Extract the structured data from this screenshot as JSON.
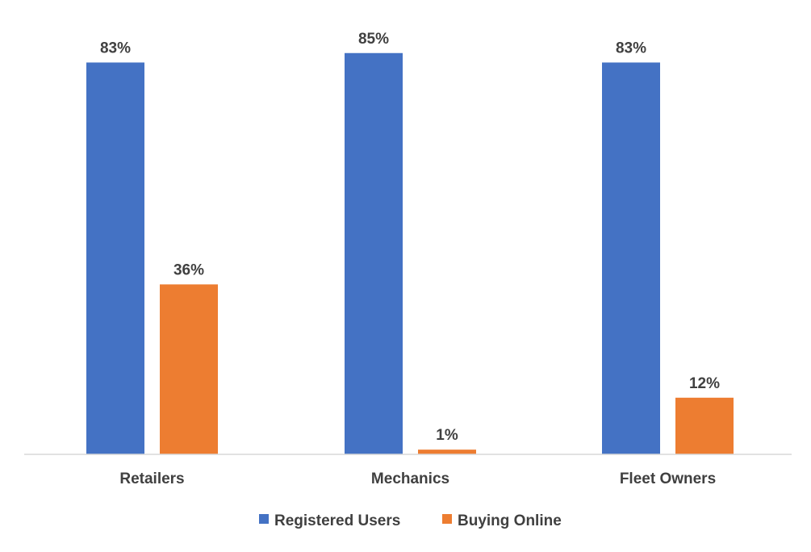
{
  "chart_data": {
    "type": "bar",
    "title": "",
    "xlabel": "",
    "ylabel": "",
    "ylim": [
      0,
      100
    ],
    "grid": false,
    "legend_position": "bottom",
    "categories": [
      "Retailers",
      "Mechanics",
      "Fleet Owners"
    ],
    "series": [
      {
        "name": "Registered Users",
        "color": "#4472C4",
        "values": [
          83,
          85,
          83
        ],
        "labels": [
          "83%",
          "85%",
          "83%"
        ]
      },
      {
        "name": "Buying Online",
        "color": "#ED7D31",
        "values": [
          36,
          1,
          12
        ],
        "labels": [
          "36%",
          "1%",
          "12%"
        ]
      }
    ]
  }
}
